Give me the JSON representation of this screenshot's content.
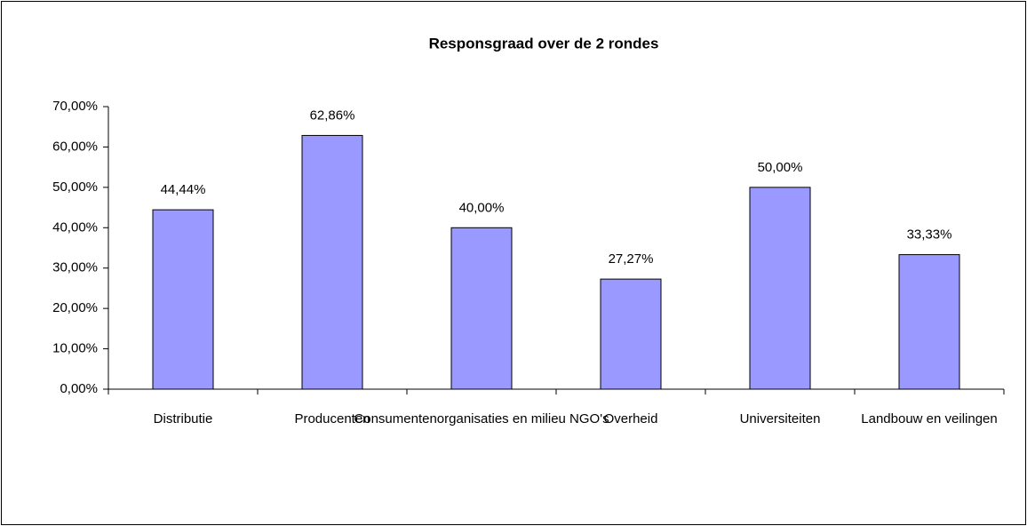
{
  "chart_data": {
    "type": "bar",
    "title": "Responsgraad over  de 2 rondes",
    "categories": [
      "Distributie",
      "Producenten",
      "Consumentenorganisaties en milieu NGO's",
      "Overheid",
      "Universiteiten",
      "Landbouw en veilingen"
    ],
    "values": [
      44.44,
      62.86,
      40.0,
      27.27,
      50.0,
      33.33
    ],
    "value_labels": [
      "44,44%",
      "62,86%",
      "40,00%",
      "27,27%",
      "50,00%",
      "33,33%"
    ],
    "color": "#9999ff",
    "ylim": [
      0,
      70
    ],
    "yticks": [
      {
        "value": 0,
        "label": "0,00%"
      },
      {
        "value": 10,
        "label": "10,00%"
      },
      {
        "value": 20,
        "label": "20,00%"
      },
      {
        "value": 30,
        "label": "30,00%"
      },
      {
        "value": 40,
        "label": "40,00%"
      },
      {
        "value": 50,
        "label": "50,00%"
      },
      {
        "value": 60,
        "label": "60,00%"
      },
      {
        "value": 70,
        "label": "70,00%"
      }
    ],
    "grid": false
  }
}
